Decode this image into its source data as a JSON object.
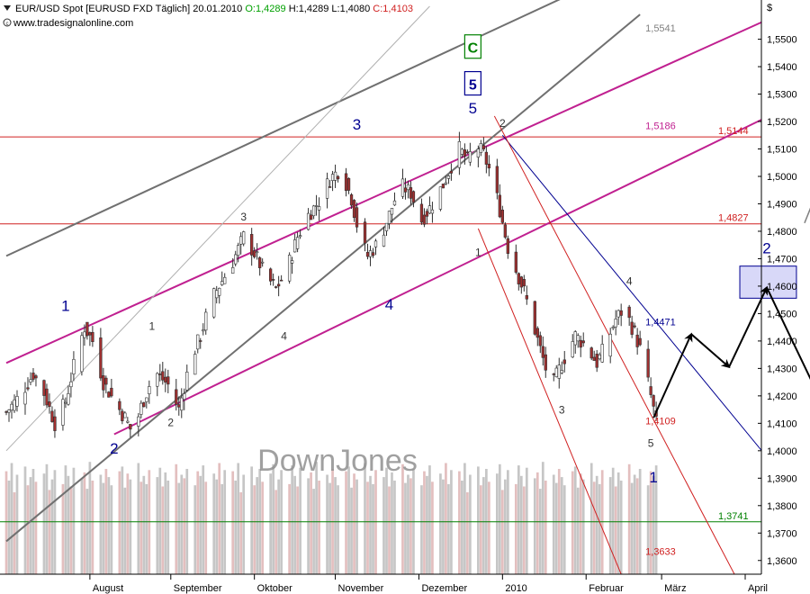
{
  "header": {
    "title": "EUR/USD Spot [EURUSD FXD  Täglich] 20.01.2010",
    "open": "O:1,4289",
    "high": "H:1,4289",
    "low": "L:1,4080",
    "close": "C:1,4103",
    "website": "www.tradesignalonline.com"
  },
  "watermark": "DownJones",
  "colors": {
    "channel": "#c02090",
    "trend": "#606060",
    "level": "#d02020",
    "down_trend": "#000090",
    "support": "#008000",
    "bull": "#ffffff",
    "bear": "#a03030",
    "volume": "#c0c0c0"
  },
  "chart_data": {
    "type": "candlestick",
    "currency_label": "$",
    "ylim": [
      1.355,
      1.562
    ],
    "y_ticks": [
      "1,3600",
      "1,3700",
      "1,3800",
      "1,3900",
      "1,4000",
      "1,4100",
      "1,4200",
      "1,4300",
      "1,4400",
      "1,4500",
      "1,4600",
      "1,4700",
      "1,4800",
      "1,4900",
      "1,5000",
      "1,5100",
      "1,5200",
      "1,5300",
      "1,5400",
      "1,5500"
    ],
    "months": [
      "August",
      "September",
      "Oktober",
      "November",
      "Dezember",
      "2010",
      "Februar",
      "März",
      "April"
    ],
    "month_days": [
      31,
      61,
      92,
      122,
      153,
      184,
      215,
      243,
      274
    ],
    "days_range": [
      0,
      278
    ],
    "anchors": [
      [
        0,
        1.414
      ],
      [
        5,
        1.42
      ],
      [
        10,
        1.428
      ],
      [
        14,
        1.421
      ],
      [
        18,
        1.41
      ],
      [
        22,
        1.418
      ],
      [
        26,
        1.435
      ],
      [
        29,
        1.445
      ],
      [
        32,
        1.44
      ],
      [
        36,
        1.425
      ],
      [
        40,
        1.418
      ],
      [
        44,
        1.412
      ],
      [
        47,
        1.406
      ],
      [
        50,
        1.416
      ],
      [
        55,
        1.429
      ],
      [
        60,
        1.424
      ],
      [
        64,
        1.415
      ],
      [
        68,
        1.432
      ],
      [
        72,
        1.442
      ],
      [
        76,
        1.455
      ],
      [
        80,
        1.462
      ],
      [
        84,
        1.469
      ],
      [
        88,
        1.478
      ],
      [
        92,
        1.472
      ],
      [
        96,
        1.464
      ],
      [
        100,
        1.459
      ],
      [
        104,
        1.466
      ],
      [
        108,
        1.478
      ],
      [
        112,
        1.486
      ],
      [
        116,
        1.491
      ],
      [
        120,
        1.499
      ],
      [
        124,
        1.503
      ],
      [
        128,
        1.492
      ],
      [
        131,
        1.478
      ],
      [
        134,
        1.471
      ],
      [
        138,
        1.476
      ],
      [
        142,
        1.486
      ],
      [
        146,
        1.497
      ],
      [
        150,
        1.494
      ],
      [
        154,
        1.484
      ],
      [
        158,
        1.49
      ],
      [
        162,
        1.497
      ],
      [
        165,
        1.504
      ],
      [
        168,
        1.51
      ],
      [
        171,
        1.506
      ],
      [
        174,
        1.512
      ],
      [
        177,
        1.508
      ],
      [
        180,
        1.5
      ],
      [
        183,
        1.488
      ],
      [
        186,
        1.474
      ],
      [
        189,
        1.466
      ],
      [
        192,
        1.458
      ],
      [
        196,
        1.444
      ],
      [
        200,
        1.43
      ],
      [
        203,
        1.425
      ],
      [
        207,
        1.434
      ],
      [
        211,
        1.442
      ],
      [
        215,
        1.438
      ],
      [
        219,
        1.432
      ],
      [
        222,
        1.438
      ],
      [
        226,
        1.448
      ],
      [
        229,
        1.452
      ],
      [
        233,
        1.443
      ],
      [
        236,
        1.434
      ],
      [
        239,
        1.42
      ],
      [
        241,
        1.41
      ]
    ],
    "volume": [
      88,
      80,
      95,
      70,
      85,
      92,
      76,
      83,
      90,
      79,
      86,
      94,
      72,
      81,
      89,
      77,
      93,
      84,
      75,
      91,
      82,
      87,
      73,
      96,
      80,
      85,
      78,
      90,
      83,
      76,
      88,
      92,
      74,
      86,
      81,
      95,
      79,
      84,
      77,
      89,
      83,
      91,
      75,
      87,
      80,
      94,
      78,
      85,
      82,
      90,
      76,
      88,
      84,
      93,
      79,
      86,
      81,
      95,
      77,
      89
    ],
    "levels": [
      {
        "label": "1,5144",
        "value": 1.5144,
        "color": "#d02020"
      },
      {
        "label": "1,4827",
        "value": 1.4827,
        "color": "#d02020"
      },
      {
        "label": "1,3741",
        "value": 1.3741,
        "color": "#008000"
      }
    ],
    "annotations": [
      {
        "text": "1,5541",
        "d": 237,
        "v": 1.5541,
        "color": "#808080"
      },
      {
        "text": "1,5186",
        "d": 237,
        "v": 1.5186,
        "color": "#c02090"
      },
      {
        "text": "1,4471",
        "d": 237,
        "v": 1.4471,
        "color": "#000090"
      },
      {
        "text": "1,4109",
        "d": 237,
        "v": 1.4109,
        "color": "#d02020"
      },
      {
        "text": "1,3633",
        "d": 237,
        "v": 1.3633,
        "color": "#d02020"
      }
    ],
    "wave_labels": [
      {
        "text": "1",
        "d": 22,
        "v": 1.451,
        "color": "#000090",
        "size": 17
      },
      {
        "text": "2",
        "d": 40,
        "v": 1.399,
        "color": "#000090",
        "size": 17
      },
      {
        "text": "3",
        "d": 130,
        "v": 1.517,
        "color": "#000090",
        "size": 17
      },
      {
        "text": "4",
        "d": 142,
        "v": 1.4515,
        "color": "#000090",
        "size": 17
      },
      {
        "text": "5",
        "d": 173,
        "v": 1.523,
        "color": "#000090",
        "size": 17
      },
      {
        "text": "1",
        "d": 240,
        "v": 1.3885,
        "color": "#000090",
        "size": 17
      },
      {
        "text": "2",
        "d": 282,
        "v": 1.472,
        "color": "#000090",
        "size": 17
      },
      {
        "text": "3",
        "d": 88,
        "v": 1.484,
        "color": "#303030",
        "size": 12
      },
      {
        "text": "1",
        "d": 54,
        "v": 1.444,
        "color": "#303030",
        "size": 12
      },
      {
        "text": "4",
        "d": 103,
        "v": 1.4405,
        "color": "#303030",
        "size": 12
      },
      {
        "text": "2",
        "d": 61,
        "v": 1.409,
        "color": "#303030",
        "size": 12
      },
      {
        "text": "2",
        "d": 184,
        "v": 1.518,
        "color": "#303030",
        "size": 12
      },
      {
        "text": "1",
        "d": 175,
        "v": 1.471,
        "color": "#303030",
        "size": 12
      },
      {
        "text": "4",
        "d": 231,
        "v": 1.4605,
        "color": "#303030",
        "size": 12
      },
      {
        "text": "3",
        "d": 206,
        "v": 1.4135,
        "color": "#303030",
        "size": 12
      },
      {
        "text": "5",
        "d": 239,
        "v": 1.4015,
        "color": "#303030",
        "size": 12
      }
    ],
    "boxed_labels": [
      {
        "text": "5",
        "d": 173,
        "v": 1.5336,
        "color": "#000090",
        "border": "#000090",
        "fill": "#ffffff"
      },
      {
        "text": "C",
        "d": 173,
        "v": 1.547,
        "color": "#008000",
        "border": "#008000",
        "fill": "#ffffff"
      }
    ],
    "target_box": {
      "d1": 272,
      "d2": 293,
      "v1": 1.4556,
      "v2": 1.4673,
      "fill": "#d8d8f8",
      "border": "#000090"
    },
    "projection": [
      [
        240,
        1.412
      ],
      [
        254,
        1.4425
      ],
      [
        268,
        1.4305
      ],
      [
        282,
        1.4595
      ],
      [
        330,
        1.361
      ]
    ],
    "upward_arrow": [
      [
        296,
        1.483
      ],
      [
        307,
        1.51
      ]
    ],
    "channel_lines": [
      {
        "p1": [
          0,
          1.432
        ],
        "p2": [
          304,
          1.5668
        ],
        "color": "#c02090",
        "width": 2
      },
      {
        "p1": [
          40,
          1.406
        ],
        "p2": [
          318,
          1.5388
        ],
        "color": "#c02090",
        "width": 2
      },
      {
        "p1": [
          0,
          1.471
        ],
        "p2": [
          215,
          1.569
        ],
        "color": "#707070",
        "width": 2
      },
      {
        "p1": [
          0,
          1.367
        ],
        "p2": [
          235,
          1.559
        ],
        "color": "#707070",
        "width": 2
      },
      {
        "p1": [
          0,
          1.4
        ],
        "p2": [
          157,
          1.562
        ],
        "color": "#b0b0b0",
        "width": 1
      },
      {
        "p1": [
          184,
          1.515
        ],
        "p2": [
          296,
          1.381
        ],
        "color": "#000090",
        "width": 1
      },
      {
        "p1": [
          181,
          1.522
        ],
        "p2": [
          270,
          1.355
        ],
        "color": "#d02020",
        "width": 1
      },
      {
        "p1": [
          175,
          1.481
        ],
        "p2": [
          228,
          1.355
        ],
        "color": "#d02020",
        "width": 1
      }
    ]
  }
}
